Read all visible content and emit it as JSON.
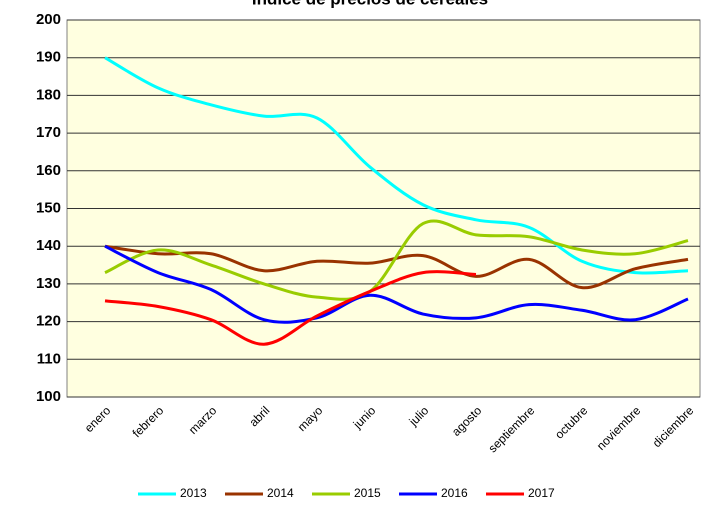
{
  "chart_data": {
    "type": "line",
    "title": "Índice de precios de cereales",
    "categories": [
      "enero",
      "febrero",
      "marzo",
      "abril",
      "mayo",
      "junio",
      "julio",
      "agosto",
      "septiembre",
      "octubre",
      "noviembre",
      "diciembre"
    ],
    "series": [
      {
        "name": "2013",
        "color": "#00ffff",
        "values": [
          190,
          182,
          177.5,
          174.5,
          174,
          161,
          151,
          147,
          145,
          136,
          133,
          133.5
        ]
      },
      {
        "name": "2014",
        "color": "#993300",
        "values": [
          140,
          138,
          138,
          133.5,
          136,
          135.5,
          137.5,
          132,
          136.5,
          129,
          134,
          136.5
        ]
      },
      {
        "name": "2015",
        "color": "#99cc00",
        "values": [
          133,
          139,
          135,
          130,
          126.5,
          128,
          146,
          143,
          142.5,
          139,
          138,
          141.5
        ]
      },
      {
        "name": "2016",
        "color": "#0000ff",
        "values": [
          140,
          133,
          128.5,
          120.5,
          121,
          127,
          122,
          121,
          124.5,
          123,
          120.5,
          126
        ]
      },
      {
        "name": "2017",
        "color": "#ff0000",
        "values": [
          125.5,
          124,
          120.5,
          114,
          121.5,
          128,
          133,
          132.5,
          null,
          null,
          null,
          null
        ]
      }
    ],
    "ylim": [
      100,
      200
    ],
    "yticks": [
      100,
      110,
      120,
      130,
      140,
      150,
      160,
      170,
      180,
      190,
      200
    ],
    "grid": true
  }
}
